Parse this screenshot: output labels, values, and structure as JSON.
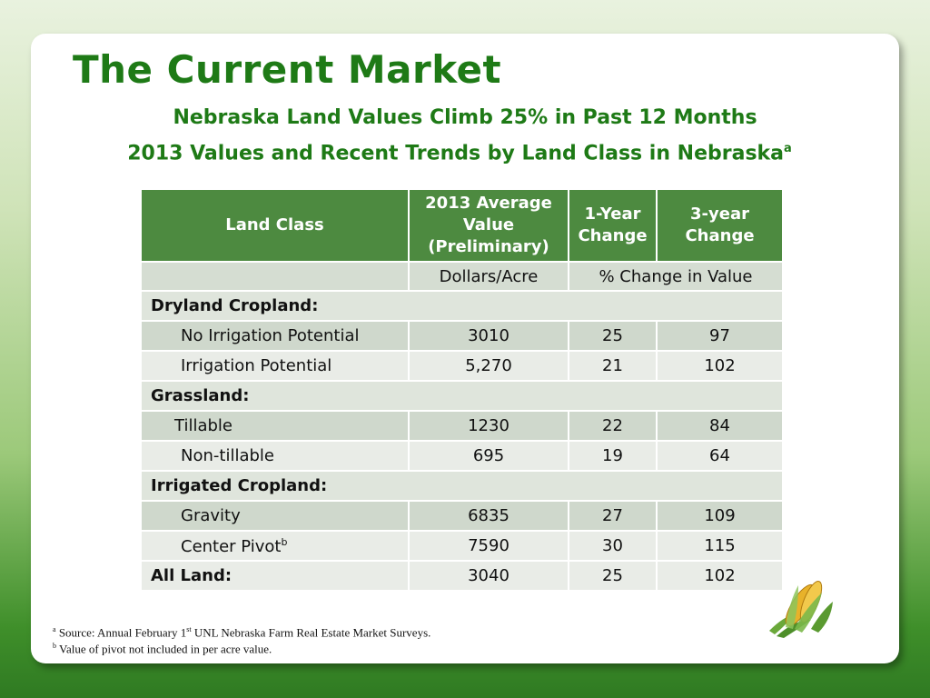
{
  "title": "The Current Market",
  "subtitle1": "Nebraska Land Values Climb 25% in Past 12 Months",
  "subtitle2": "2013 Values and Recent Trends by Land Class in Nebraska",
  "subtitle2_sup": "a",
  "table": {
    "headers": [
      "Land Class",
      "2013 Average Value (Preliminary)",
      "1-Year Change",
      "3-year Change"
    ],
    "units": [
      "",
      "Dollars/Acre",
      "% Change in Value"
    ],
    "sections": [
      {
        "name": "Dryland Cropland:",
        "rows": [
          {
            "label": "No Irrigation Potential",
            "value": "3010",
            "one_year": "25",
            "three_year": "97"
          },
          {
            "label": "Irrigation Potential",
            "value": "5,270",
            "one_year": "21",
            "three_year": "102"
          }
        ]
      },
      {
        "name": "Grassland:",
        "rows": [
          {
            "label": "Tillable",
            "value": "1230",
            "one_year": "22",
            "three_year": "84"
          },
          {
            "label": "Non-tillable",
            "value": "695",
            "one_year": "19",
            "three_year": "64"
          }
        ]
      },
      {
        "name": "Irrigated Cropland:",
        "rows": [
          {
            "label": "Gravity",
            "value": "6835",
            "one_year": "27",
            "three_year": "109"
          },
          {
            "label": "Center Pivot",
            "label_sup": "b",
            "value": "7590",
            "one_year": "30",
            "three_year": "115"
          }
        ]
      }
    ],
    "total": {
      "label": "All Land:",
      "value": "3040",
      "one_year": "25",
      "three_year": "102"
    }
  },
  "footnotes": {
    "a_mark": "a",
    "a_text_1": "Source: Annual February 1",
    "a_sup": "st",
    "a_text_2": " UNL Nebraska Farm Real Estate Market Surveys.",
    "b_mark": "b",
    "b_text": "Value of pivot not included in per acre value."
  },
  "colors": {
    "title_green": "#1e7a16",
    "header_green": "#4d8a40",
    "row_dark": "#cfd8cc",
    "row_light": "#e9ece7"
  },
  "icons": [
    "corn-icon"
  ]
}
